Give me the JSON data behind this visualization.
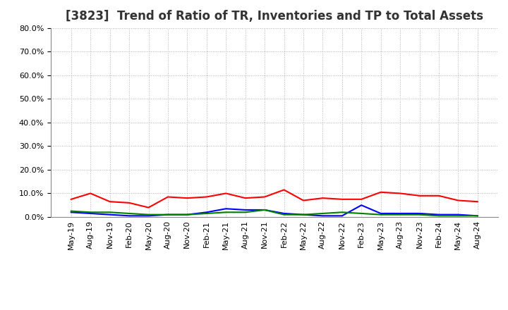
{
  "title": "[3823]  Trend of Ratio of TR, Inventories and TP to Total Assets",
  "x_labels": [
    "May-19",
    "Aug-19",
    "Nov-19",
    "Feb-20",
    "May-20",
    "Aug-20",
    "Nov-20",
    "Feb-21",
    "May-21",
    "Aug-21",
    "Nov-21",
    "Feb-22",
    "May-22",
    "Aug-22",
    "Nov-22",
    "Feb-23",
    "May-23",
    "Aug-23",
    "Nov-23",
    "Feb-24",
    "May-24",
    "Aug-24"
  ],
  "trade_receivables": [
    7.5,
    10.0,
    6.5,
    6.0,
    4.0,
    8.5,
    8.0,
    8.5,
    10.0,
    8.0,
    8.5,
    11.5,
    7.0,
    8.0,
    7.5,
    7.5,
    10.5,
    10.0,
    9.0,
    9.0,
    7.0,
    6.5
  ],
  "inventories": [
    2.0,
    1.5,
    1.0,
    0.5,
    0.5,
    1.0,
    1.0,
    2.0,
    3.5,
    3.0,
    3.0,
    1.5,
    1.0,
    0.5,
    0.5,
    5.0,
    1.5,
    1.5,
    1.5,
    1.0,
    1.0,
    0.5
  ],
  "trade_payables": [
    2.5,
    2.0,
    2.0,
    1.5,
    1.0,
    1.0,
    1.0,
    1.5,
    2.0,
    2.0,
    3.0,
    1.0,
    1.0,
    1.5,
    2.0,
    1.5,
    1.0,
    1.0,
    1.0,
    0.5,
    0.5,
    0.5
  ],
  "tr_color": "#ff0000",
  "inv_color": "#0000ff",
  "tp_color": "#008000",
  "ylim": [
    0,
    80
  ],
  "yticks": [
    0,
    10,
    20,
    30,
    40,
    50,
    60,
    70,
    80
  ],
  "background_color": "#ffffff",
  "grid_color": "#b0b0b0",
  "title_fontsize": 12,
  "tick_fontsize": 8,
  "legend_fontsize": 9
}
